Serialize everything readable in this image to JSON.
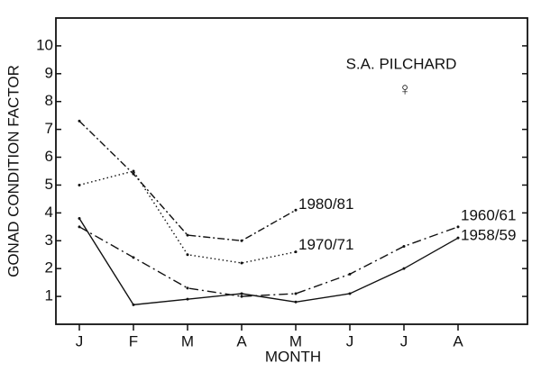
{
  "chart_data": {
    "type": "line",
    "title": "S.A. PILCHARD",
    "subtitle": "♀",
    "x_label": "MONTH",
    "y_label": "GONAD CONDITION FACTOR",
    "categories": [
      "J",
      "F",
      "M",
      "A",
      "M",
      "J",
      "J",
      "A"
    ],
    "ylim": [
      0,
      11
    ],
    "yticks": [
      1,
      2,
      3,
      4,
      5,
      6,
      7,
      8,
      9,
      10
    ],
    "series": [
      {
        "name": "1980/81",
        "color": "#111111",
        "style": "dash-dot",
        "values": [
          7.3,
          5.4,
          3.2,
          3.0,
          4.1,
          null,
          null,
          null
        ]
      },
      {
        "name": "1970/71",
        "color": "#111111",
        "style": "dotted",
        "values": [
          5.0,
          5.5,
          2.5,
          2.2,
          2.6,
          null,
          null,
          null
        ]
      },
      {
        "name": "1960/61",
        "color": "#111111",
        "style": "long-dash-dot",
        "values": [
          3.5,
          2.4,
          1.3,
          1.0,
          1.1,
          1.8,
          2.8,
          3.5
        ]
      },
      {
        "name": "1958/59",
        "color": "#111111",
        "style": "solid",
        "values": [
          3.8,
          0.7,
          0.9,
          1.1,
          0.8,
          1.1,
          2.0,
          3.1
        ]
      }
    ]
  }
}
